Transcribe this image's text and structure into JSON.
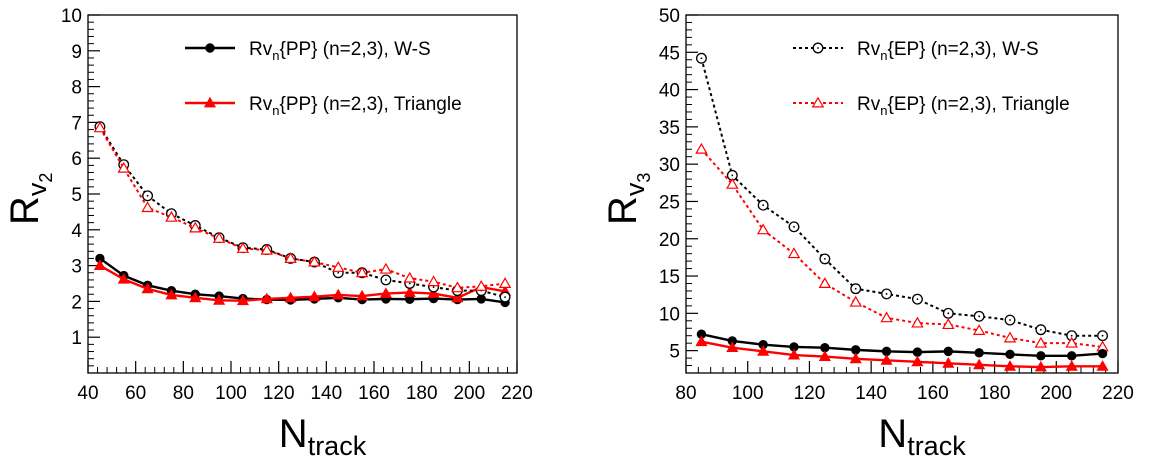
{
  "chart_data": [
    {
      "type": "line",
      "xlabel": "N",
      "xlabel_sub": "track",
      "ylabel": "R",
      "ylabel_sub": "v",
      "ylabel_subsub": "2",
      "xlim": [
        40,
        220
      ],
      "ylim": [
        0,
        10
      ],
      "xticks": [
        "40",
        "60",
        "80",
        "100",
        "120",
        "140",
        "160",
        "180",
        "200",
        "220"
      ],
      "yticks": [
        "1",
        "2",
        "3",
        "4",
        "5",
        "6",
        "7",
        "8",
        "9",
        "10"
      ],
      "legend_position": "top-right",
      "x": [
        45,
        55,
        65,
        75,
        85,
        95,
        105,
        115,
        125,
        135,
        145,
        155,
        165,
        175,
        185,
        195,
        205,
        215
      ],
      "series": [
        {
          "name_pre": "Rv",
          "name_sub": "n",
          "name_post": "{PP} (n=2,3), W-S",
          "style": "solid",
          "color": "#000000",
          "marker": "filled-circle",
          "values": [
            3.2,
            2.72,
            2.45,
            2.3,
            2.2,
            2.15,
            2.08,
            2.05,
            2.04,
            2.07,
            2.1,
            2.05,
            2.07,
            2.06,
            2.08,
            2.05,
            2.07,
            1.97
          ]
        },
        {
          "name_pre": "Rv",
          "name_sub": "n",
          "name_post": "{PP} (n=2,3), Triangle",
          "style": "solid",
          "color": "#ff0000",
          "marker": "filled-triangle",
          "values": [
            3.0,
            2.62,
            2.35,
            2.18,
            2.1,
            2.03,
            2.02,
            2.07,
            2.1,
            2.13,
            2.18,
            2.15,
            2.22,
            2.25,
            2.22,
            2.1,
            2.4,
            2.28
          ]
        },
        {
          "name_pre": "",
          "name_sub": "",
          "name_post": "",
          "style": "dotted",
          "color": "#000000",
          "marker": "open-circle",
          "values": [
            6.88,
            5.82,
            4.95,
            4.45,
            4.12,
            3.78,
            3.5,
            3.45,
            3.2,
            3.1,
            2.8,
            2.8,
            2.6,
            2.5,
            2.4,
            2.3,
            2.3,
            2.12
          ]
        },
        {
          "name_pre": "",
          "name_sub": "",
          "name_post": "",
          "style": "dotted",
          "color": "#ff0000",
          "marker": "open-triangle",
          "values": [
            6.85,
            5.72,
            4.62,
            4.35,
            4.05,
            3.76,
            3.48,
            3.43,
            3.2,
            3.1,
            2.95,
            2.8,
            2.9,
            2.65,
            2.55,
            2.38,
            2.42,
            2.5
          ]
        }
      ]
    },
    {
      "type": "line",
      "xlabel": "N",
      "xlabel_sub": "track",
      "ylabel": "R",
      "ylabel_sub": "v",
      "ylabel_subsub": "3",
      "xlim": [
        80,
        220
      ],
      "ylim": [
        2,
        50
      ],
      "xticks": [
        "80",
        "100",
        "120",
        "140",
        "160",
        "180",
        "200",
        "220"
      ],
      "yticks": [
        "5",
        "10",
        "15",
        "20",
        "25",
        "30",
        "35",
        "40",
        "45",
        "50"
      ],
      "legend_position": "top-right",
      "x": [
        85,
        95,
        105,
        115,
        125,
        135,
        145,
        155,
        165,
        175,
        185,
        195,
        205,
        215
      ],
      "series": [
        {
          "name_pre": "Rv",
          "name_sub": "n",
          "name_post": "{EP} (n=2,3), W-S",
          "style": "dotted",
          "color": "#000000",
          "marker": "open-circle",
          "values": [
            44.2,
            28.5,
            24.5,
            21.6,
            17.3,
            13.3,
            12.6,
            11.9,
            10.0,
            9.6,
            9.1,
            7.8,
            7.0,
            7.0
          ]
        },
        {
          "name_pre": "Rv",
          "name_sub": "n",
          "name_post": "{EP} (n=2,3), Triangle",
          "style": "dotted",
          "color": "#ff0000",
          "marker": "open-triangle",
          "values": [
            32.0,
            27.3,
            21.2,
            18.0,
            14.0,
            11.5,
            9.4,
            8.7,
            8.5,
            7.7,
            6.7,
            6.0,
            6.0,
            5.5
          ]
        },
        {
          "name_pre": "",
          "name_sub": "",
          "name_post": "",
          "style": "solid",
          "color": "#000000",
          "marker": "filled-circle",
          "values": [
            7.2,
            6.3,
            5.8,
            5.5,
            5.4,
            5.1,
            4.9,
            4.8,
            4.9,
            4.7,
            4.5,
            4.3,
            4.3,
            4.6
          ]
        },
        {
          "name_pre": "",
          "name_sub": "",
          "name_post": "",
          "style": "solid",
          "color": "#ff0000",
          "marker": "filled-triangle",
          "values": [
            6.2,
            5.4,
            4.9,
            4.4,
            4.2,
            3.9,
            3.7,
            3.5,
            3.3,
            3.1,
            2.9,
            2.8,
            2.9,
            2.9
          ]
        }
      ]
    }
  ]
}
